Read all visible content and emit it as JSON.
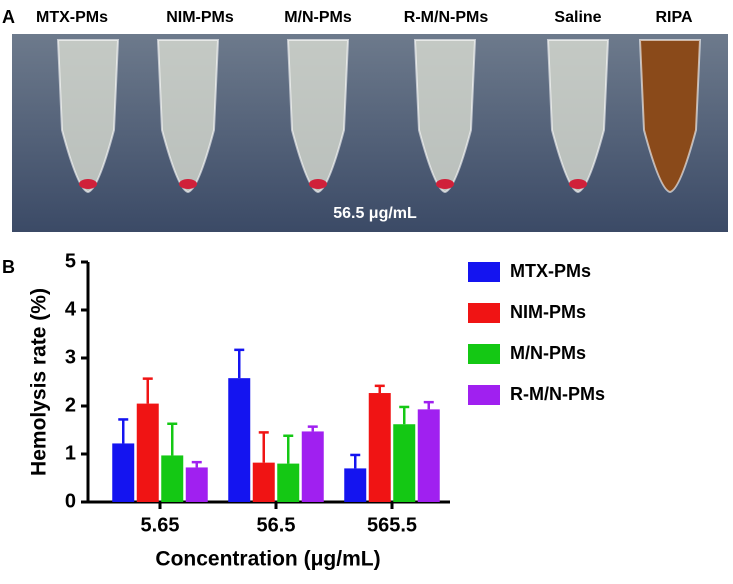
{
  "panel_a": {
    "label": "A",
    "tubes": [
      "MTX-PMs",
      "NIM-PMs",
      "M/N-PMs",
      "R-M/N-PMs",
      "Saline",
      "RIPA"
    ],
    "annotation": "56.5 μg/mL"
  },
  "panel_b": {
    "label": "B"
  },
  "chart_data": {
    "type": "bar",
    "y_label": "Hemolysis rate (%)",
    "x_label": "Concentration (μg/mL)",
    "categories": [
      "5.65",
      "56.5",
      "565.5"
    ],
    "series": [
      {
        "name": "MTX-PMs",
        "color": "#1414f0",
        "values": [
          1.22,
          2.58,
          0.7
        ],
        "errors": [
          0.5,
          0.59,
          0.28
        ]
      },
      {
        "name": "NIM-PMs",
        "color": "#f01414",
        "values": [
          2.05,
          0.82,
          2.27
        ],
        "errors": [
          0.52,
          0.63,
          0.15
        ]
      },
      {
        "name": "M/N-PMs",
        "color": "#14c814",
        "values": [
          0.97,
          0.8,
          1.62
        ],
        "errors": [
          0.66,
          0.58,
          0.36
        ]
      },
      {
        "name": "R-M/N-PMs",
        "color": "#a020f0",
        "values": [
          0.72,
          1.47,
          1.93
        ],
        "errors": [
          0.11,
          0.1,
          0.15
        ]
      }
    ],
    "ylim": [
      0,
      5
    ],
    "yticks": [
      0,
      1,
      2,
      3,
      4,
      5
    ],
    "legend": "right"
  }
}
